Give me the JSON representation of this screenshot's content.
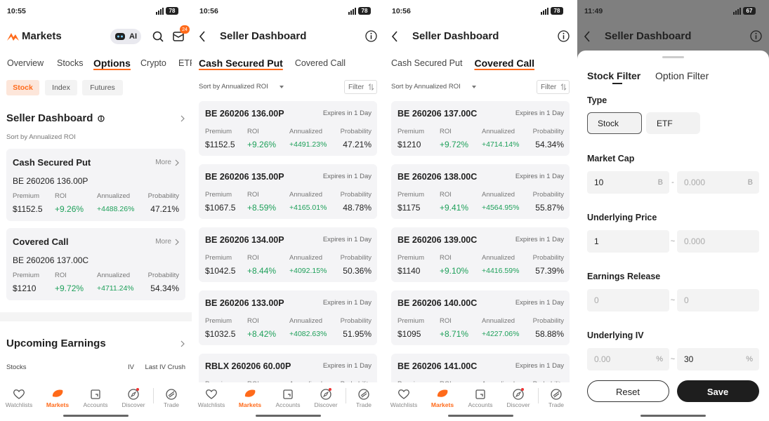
{
  "nav": [
    "Watchlists",
    "Markets",
    "Accounts",
    "Discover",
    "Trade"
  ],
  "metric_labels": [
    "Premium",
    "ROI",
    "Annualized",
    "Probability"
  ],
  "markets": {
    "status_time": "10:55",
    "battery": "78",
    "title": "Markets",
    "ai": "AI",
    "badge": "24",
    "tabs": [
      "Overview",
      "Stocks",
      "Options",
      "Crypto",
      "ETF"
    ],
    "chips": [
      "Stock",
      "Index",
      "Futures"
    ],
    "section_title": "Seller Dashboard",
    "sort": "Sort by Annualized ROI",
    "cards": [
      {
        "title": "Cash Secured Put",
        "more": "More",
        "contract": "BE 260206 136.00P",
        "values": [
          "$1152.5",
          "+9.26%",
          "+4488.26%",
          "47.21%"
        ]
      },
      {
        "title": "Covered Call",
        "more": "More",
        "contract": "BE 260206 137.00C",
        "values": [
          "$1210",
          "+9.72%",
          "+4711.24%",
          "54.34%"
        ]
      }
    ],
    "upcoming_title": "Upcoming Earnings",
    "upcoming_columns": [
      "Stocks",
      "IV",
      "Last IV Crush"
    ]
  },
  "dashboards": [
    {
      "status_time": "10:56",
      "battery": "78",
      "title": "Seller Dashboard",
      "tabs": [
        "Cash Secured Put",
        "Covered Call"
      ],
      "active_tab": 0,
      "sort": "Sort by Annualized ROI",
      "filter": "Filter",
      "cards": [
        {
          "contract": "BE 260206 136.00P",
          "expiry": "Expires in 1 Day",
          "values": [
            "$1152.5",
            "+9.26%",
            "+4491.23%",
            "47.21%"
          ]
        },
        {
          "contract": "BE 260206 135.00P",
          "expiry": "Expires in 1 Day",
          "values": [
            "$1067.5",
            "+8.59%",
            "+4165.01%",
            "48.78%"
          ]
        },
        {
          "contract": "BE 260206 134.00P",
          "expiry": "Expires in 1 Day",
          "values": [
            "$1042.5",
            "+8.44%",
            "+4092.15%",
            "50.36%"
          ]
        },
        {
          "contract": "BE 260206 133.00P",
          "expiry": "Expires in 1 Day",
          "values": [
            "$1032.5",
            "+8.42%",
            "+4082.63%",
            "51.95%"
          ]
        },
        {
          "contract": "RBLX 260206 60.00P",
          "expiry": "Expires in 1 Day"
        }
      ]
    },
    {
      "status_time": "10:56",
      "battery": "78",
      "title": "Seller Dashboard",
      "tabs": [
        "Cash Secured Put",
        "Covered Call"
      ],
      "active_tab": 1,
      "sort": "Sort by Annualized ROI",
      "filter": "Filter",
      "cards": [
        {
          "contract": "BE 260206 137.00C",
          "expiry": "Expires in 1 Day",
          "values": [
            "$1210",
            "+9.72%",
            "+4714.14%",
            "54.34%"
          ]
        },
        {
          "contract": "BE 260206 138.00C",
          "expiry": "Expires in 1 Day",
          "values": [
            "$1175",
            "+9.41%",
            "+4564.95%",
            "55.87%"
          ]
        },
        {
          "contract": "BE 260206 139.00C",
          "expiry": "Expires in 1 Day",
          "values": [
            "$1140",
            "+9.10%",
            "+4416.59%",
            "57.39%"
          ]
        },
        {
          "contract": "BE 260206 140.00C",
          "expiry": "Expires in 1 Day",
          "values": [
            "$1095",
            "+8.71%",
            "+4227.06%",
            "58.88%"
          ]
        },
        {
          "contract": "BE 260206 141.00C",
          "expiry": "Expires in 1 Day"
        }
      ]
    }
  ],
  "filter_sheet": {
    "status_time": "11:49",
    "battery": "67",
    "title": "Seller Dashboard",
    "tabs": [
      "Stock Filter",
      "Option Filter"
    ],
    "type_label": "Type",
    "type_options": [
      "Stock",
      "ETF"
    ],
    "fields": [
      {
        "label": "Market Cap",
        "min": "10",
        "min_filled": true,
        "separator": "-",
        "max": "0.000",
        "max_filled": false,
        "unit": "B"
      },
      {
        "label": "Underlying Price",
        "min": "1",
        "min_filled": true,
        "separator": "~",
        "max": "0.000",
        "max_filled": false
      },
      {
        "label": "Earnings Release",
        "min": "0",
        "min_filled": false,
        "separator": "~",
        "max": "0",
        "max_filled": false
      },
      {
        "label": "Underlying IV",
        "min": "0.00",
        "min_filled": false,
        "separator": "~",
        "max": "30",
        "max_filled": true,
        "unit": "%"
      }
    ],
    "reset": "Reset",
    "save": "Save"
  }
}
